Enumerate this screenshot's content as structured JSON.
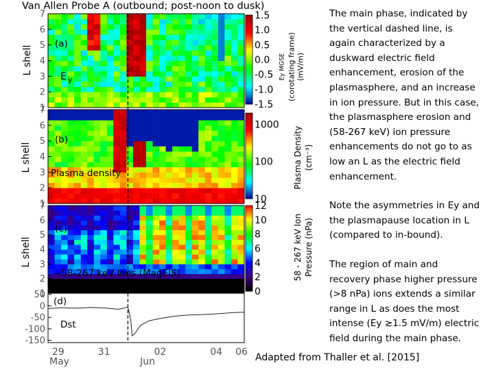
{
  "title": "Van Allen Probe A (outbound; post-noon to dusk)",
  "right_text": {
    "para1": [
      "The main phase, indicated by",
      "the vertical dashed line, is",
      "again characterized by a",
      "duskward electric field",
      "enhancement, erosion of the",
      "plasmasphere, and an increase",
      "in ion pressure.  But in this case,",
      "the plasmasphere erosion and",
      "(58-267 keV) ion pressure",
      "enhancements do not go to as",
      "low an L as the electric field",
      "enhancement."
    ],
    "para2": [
      "Note the asymmetries in Ey and",
      "the plasmapause location in L",
      "(compared to in-bound)."
    ],
    "para3": [
      "The region of main and",
      "recovery phase higher pressure",
      "(>8 nPa) ions extends a similar",
      "range in L as does the most",
      "intense (Ey ≳1.5 mV/m) electric",
      "field during the main phase."
    ]
  },
  "credit": "Adapted from Thaller et al. [2015]",
  "chart_data": [
    {
      "type": "heatmap",
      "panel_label": "(a)",
      "inner_label": "Ey",
      "ylabel": "L shell",
      "yticks": [
        "1",
        "2",
        "3",
        "4",
        "5",
        "6",
        "7"
      ],
      "ylim": [
        1,
        7
      ],
      "colorbar_label_1": "Ey MGSE",
      "colorbar_label_2": "(corotating frame)",
      "colorbar_label_3": "(mV/m)",
      "colorbar_ticks": [
        "1.5",
        "1.0",
        "0.5",
        "0.0",
        "-0.5",
        "-1.0",
        "-1.5"
      ],
      "colorbar_range": [
        -1.5,
        1.5
      ],
      "colors": [
        "#0000a0",
        "#00ffff",
        "#00ff00",
        "#ffff00",
        "#ff0000",
        "#a00000"
      ]
    },
    {
      "type": "heatmap",
      "panel_label": "(b)",
      "inner_label": "Plasma density",
      "ylabel": "L shell",
      "yticks": [
        "1",
        "2",
        "3",
        "4",
        "5",
        "6",
        "7"
      ],
      "ylim": [
        1,
        7
      ],
      "colorbar_label_1": "Plasma Density",
      "colorbar_label_2": "(cm⁻³)",
      "colorbar_ticks": [
        "1000",
        "100",
        "10"
      ],
      "scale": "log",
      "colors": [
        "#0000a0",
        "#00ffff",
        "#00ff00",
        "#ffff00",
        "#ff0000",
        "#a00000"
      ]
    },
    {
      "type": "heatmap",
      "panel_label": "(c)",
      "inner_label": "~58-267 keV Ions (MagEIS)",
      "ylabel": "L shell",
      "yticks": [
        "1",
        "2",
        "3",
        "4",
        "5",
        "6",
        "7"
      ],
      "ylim": [
        1,
        7
      ],
      "colorbar_label_1": "58 - 267 keV Ion",
      "colorbar_label_2": "Pressure (nPa)",
      "colorbar_ticks": [
        "12",
        "10",
        "8",
        "6",
        "4",
        "2",
        "0"
      ],
      "colorbar_range": [
        0,
        12
      ],
      "colors": [
        "#000000",
        "#3a0080",
        "#0000ff",
        "#00ffff",
        "#00ff00",
        "#ffff00",
        "#ff0000"
      ]
    },
    {
      "type": "line",
      "panel_label": "(d)",
      "inner_label": "Dst",
      "yticks": [
        "50",
        "0",
        "-50",
        "-100",
        "-150"
      ],
      "ylim": [
        -160,
        55
      ],
      "xtick_labels": [
        "29",
        "31",
        "02",
        "04",
        "06"
      ],
      "x_month_labels": [
        "May",
        "Jun"
      ],
      "x": [
        29.0,
        29.5,
        30.0,
        30.5,
        31.0,
        31.5,
        31.7,
        31.85,
        31.95,
        32.0,
        32.1,
        32.3,
        32.6,
        33.0,
        33.5,
        34.0,
        34.5,
        35.0,
        35.5,
        36.0
      ],
      "y": [
        -12,
        -8,
        -10,
        -7,
        -9,
        -15,
        -10,
        -5,
        -60,
        -130,
        -120,
        -85,
        -65,
        -55,
        -45,
        -40,
        -38,
        -35,
        -30,
        -27
      ],
      "event_marker_x": 31.85
    }
  ]
}
